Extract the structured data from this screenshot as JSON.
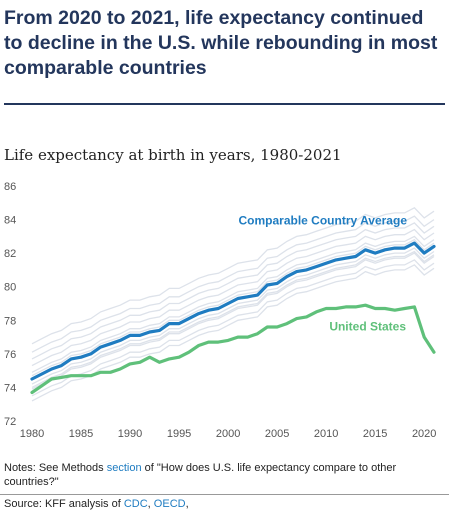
{
  "headline": "From 2020 to 2021, life expectancy continued to decline in the U.S. while rebounding in most comparable countries",
  "chart_data": {
    "type": "line",
    "title": "Life expectancy at birth in years, 1980-2021",
    "xlabel": "",
    "ylabel": "",
    "xlim": [
      1980,
      2021
    ],
    "ylim": [
      72,
      86
    ],
    "x_ticks": [
      1980,
      1985,
      1990,
      1995,
      2000,
      2005,
      2010,
      2015,
      2020
    ],
    "y_ticks": [
      72,
      74,
      76,
      78,
      80,
      82,
      84,
      86
    ],
    "grid": false,
    "x": [
      1980,
      1981,
      1982,
      1983,
      1984,
      1985,
      1986,
      1987,
      1988,
      1989,
      1990,
      1991,
      1992,
      1993,
      1994,
      1995,
      1996,
      1997,
      1998,
      1999,
      2000,
      2001,
      2002,
      2003,
      2004,
      2005,
      2006,
      2007,
      2008,
      2009,
      2010,
      2011,
      2012,
      2013,
      2014,
      2015,
      2016,
      2017,
      2018,
      2019,
      2020,
      2021
    ],
    "series": [
      {
        "name": "Comparable Country Average",
        "color": "#1f7cc1",
        "values": [
          74.5,
          74.8,
          75.1,
          75.3,
          75.7,
          75.8,
          76.0,
          76.4,
          76.6,
          76.8,
          77.1,
          77.1,
          77.3,
          77.4,
          77.8,
          77.8,
          78.1,
          78.4,
          78.6,
          78.7,
          79.0,
          79.3,
          79.4,
          79.5,
          80.1,
          80.2,
          80.6,
          80.9,
          81.0,
          81.2,
          81.4,
          81.6,
          81.7,
          81.8,
          82.2,
          82.0,
          82.2,
          82.3,
          82.3,
          82.6,
          82.0,
          82.4
        ]
      },
      {
        "name": "United States",
        "color": "#5fc07a",
        "values": [
          73.7,
          74.1,
          74.5,
          74.6,
          74.7,
          74.7,
          74.7,
          74.9,
          74.9,
          75.1,
          75.4,
          75.5,
          75.8,
          75.5,
          75.7,
          75.8,
          76.1,
          76.5,
          76.7,
          76.7,
          76.8,
          77.0,
          77.0,
          77.2,
          77.6,
          77.6,
          77.8,
          78.1,
          78.2,
          78.5,
          78.7,
          78.7,
          78.8,
          78.8,
          78.9,
          78.7,
          78.7,
          78.6,
          78.7,
          78.8,
          77.0,
          76.1
        ]
      }
    ],
    "background_series": [
      {
        "values": [
          74.2,
          74.5,
          74.8,
          75.0,
          75.4,
          75.5,
          75.7,
          76.1,
          76.3,
          76.5,
          76.8,
          76.8,
          77.0,
          77.1,
          77.5,
          77.5,
          77.8,
          78.1,
          78.3,
          78.4,
          78.7,
          79.0,
          79.1,
          79.2,
          79.8,
          79.9,
          80.3,
          80.6,
          80.7,
          80.9,
          81.1,
          81.3,
          81.4,
          81.5,
          81.9,
          81.7,
          81.9,
          82.0,
          82.0,
          82.3,
          81.7,
          82.1
        ]
      },
      {
        "values": [
          74.9,
          75.2,
          75.5,
          75.7,
          76.1,
          76.2,
          76.4,
          76.8,
          77.0,
          77.2,
          77.5,
          77.5,
          77.7,
          77.8,
          78.2,
          78.2,
          78.5,
          78.8,
          79.0,
          79.1,
          79.4,
          79.7,
          79.8,
          79.9,
          80.5,
          80.6,
          81.0,
          81.3,
          81.4,
          81.6,
          81.8,
          82.0,
          82.1,
          82.2,
          82.6,
          82.4,
          82.6,
          82.7,
          82.7,
          83.0,
          82.4,
          82.8
        ]
      },
      {
        "values": [
          73.9,
          74.2,
          74.5,
          74.7,
          75.1,
          75.2,
          75.4,
          75.8,
          76.0,
          76.2,
          76.5,
          76.5,
          76.7,
          76.8,
          77.2,
          77.2,
          77.5,
          77.8,
          78.0,
          78.1,
          78.4,
          78.7,
          78.8,
          78.9,
          79.5,
          79.6,
          80.0,
          80.3,
          80.4,
          80.6,
          80.8,
          81.0,
          81.1,
          81.2,
          81.6,
          81.4,
          81.6,
          81.7,
          81.7,
          82.0,
          81.4,
          81.8
        ]
      },
      {
        "values": [
          75.3,
          75.6,
          75.9,
          76.1,
          76.5,
          76.6,
          76.8,
          77.2,
          77.4,
          77.6,
          77.9,
          77.9,
          78.1,
          78.2,
          78.6,
          78.6,
          78.9,
          79.2,
          79.4,
          79.5,
          79.8,
          80.1,
          80.2,
          80.3,
          80.9,
          81.0,
          81.4,
          81.7,
          81.8,
          82.0,
          82.2,
          82.4,
          82.5,
          82.6,
          83.0,
          82.8,
          83.0,
          83.1,
          83.1,
          83.4,
          82.8,
          83.2
        ]
      },
      {
        "values": [
          73.5,
          73.8,
          74.1,
          74.3,
          74.7,
          74.8,
          75.0,
          75.4,
          75.6,
          75.8,
          76.1,
          76.1,
          76.3,
          76.4,
          76.8,
          76.8,
          77.1,
          77.4,
          77.6,
          77.7,
          78.0,
          78.3,
          78.4,
          78.5,
          79.1,
          79.2,
          79.6,
          79.9,
          80.0,
          80.2,
          80.4,
          80.6,
          80.7,
          80.8,
          81.2,
          81.0,
          81.2,
          81.3,
          81.3,
          81.6,
          81.0,
          81.4
        ]
      },
      {
        "values": [
          75.7,
          76.0,
          76.3,
          76.5,
          76.9,
          77.0,
          77.2,
          77.6,
          77.8,
          78.0,
          78.3,
          78.3,
          78.5,
          78.6,
          79.0,
          79.0,
          79.3,
          79.6,
          79.8,
          79.9,
          80.2,
          80.5,
          80.6,
          80.7,
          81.3,
          81.4,
          81.8,
          82.1,
          82.2,
          82.4,
          82.6,
          82.8,
          82.9,
          83.0,
          83.4,
          83.2,
          83.4,
          83.5,
          83.5,
          83.8,
          83.2,
          83.6
        ]
      },
      {
        "values": [
          74.7,
          75.0,
          75.3,
          75.5,
          75.9,
          76.0,
          76.2,
          76.6,
          76.8,
          77.0,
          77.3,
          77.3,
          77.5,
          77.6,
          78.0,
          78.0,
          78.3,
          78.6,
          78.8,
          78.9,
          79.2,
          79.5,
          79.6,
          79.7,
          80.3,
          80.4,
          80.8,
          81.1,
          81.2,
          81.4,
          81.6,
          81.8,
          81.9,
          82.0,
          82.4,
          82.2,
          82.4,
          82.5,
          82.5,
          82.8,
          82.2,
          82.6
        ]
      },
      {
        "values": [
          76.1,
          76.4,
          76.7,
          76.9,
          77.3,
          77.4,
          77.6,
          78.0,
          78.2,
          78.4,
          78.7,
          78.7,
          78.9,
          79.0,
          79.4,
          79.4,
          79.7,
          80.0,
          80.2,
          80.3,
          80.6,
          80.9,
          81.0,
          81.1,
          81.7,
          81.8,
          82.2,
          82.5,
          82.6,
          82.8,
          83.0,
          83.2,
          83.3,
          83.4,
          83.8,
          83.6,
          83.8,
          83.9,
          83.9,
          84.2,
          83.6,
          84.0
        ]
      },
      {
        "values": [
          74.0,
          74.3,
          74.6,
          74.8,
          75.2,
          75.3,
          75.5,
          75.9,
          76.1,
          76.3,
          76.6,
          76.6,
          76.8,
          76.9,
          77.3,
          77.3,
          77.6,
          77.9,
          78.1,
          78.2,
          78.5,
          78.8,
          78.9,
          79.0,
          79.6,
          79.7,
          80.1,
          80.4,
          80.5,
          80.7,
          80.9,
          81.1,
          81.2,
          81.3,
          81.7,
          81.5,
          81.7,
          81.8,
          81.8,
          82.1,
          81.5,
          81.9
        ]
      },
      {
        "values": [
          76.6,
          76.9,
          77.2,
          77.4,
          77.8,
          77.9,
          78.1,
          78.5,
          78.7,
          78.9,
          79.2,
          79.2,
          79.4,
          79.5,
          79.9,
          79.9,
          80.2,
          80.5,
          80.7,
          80.8,
          81.1,
          81.4,
          81.5,
          81.6,
          82.2,
          82.3,
          82.7,
          83.0,
          83.1,
          83.3,
          83.5,
          83.7,
          83.8,
          83.9,
          84.3,
          84.1,
          84.3,
          84.4,
          84.4,
          84.7,
          84.1,
          84.5
        ]
      },
      {
        "values": [
          73.2,
          73.5,
          73.8,
          74.0,
          74.4,
          74.5,
          74.7,
          75.1,
          75.3,
          75.5,
          75.8,
          75.8,
          76.0,
          76.1,
          76.5,
          76.5,
          76.8,
          77.1,
          77.3,
          77.4,
          77.7,
          78.0,
          78.1,
          78.2,
          78.8,
          78.9,
          79.3,
          79.6,
          79.7,
          79.9,
          80.1,
          80.3,
          80.4,
          80.5,
          80.9,
          80.7,
          80.9,
          81.0,
          81.0,
          81.3,
          80.7,
          81.1
        ]
      }
    ],
    "annotations": {
      "comparable": "Comparable Country Average",
      "us": "United States"
    }
  },
  "notes": {
    "prefix": "Notes: See Methods ",
    "link": "section",
    "suffix": " of \"How does U.S. life expectancy compare to other countries?\""
  },
  "source": {
    "prefix": "Source: KFF analysis of ",
    "link1": "CDC",
    "sep": ", ",
    "link2": "OECD",
    "suffix": ","
  }
}
